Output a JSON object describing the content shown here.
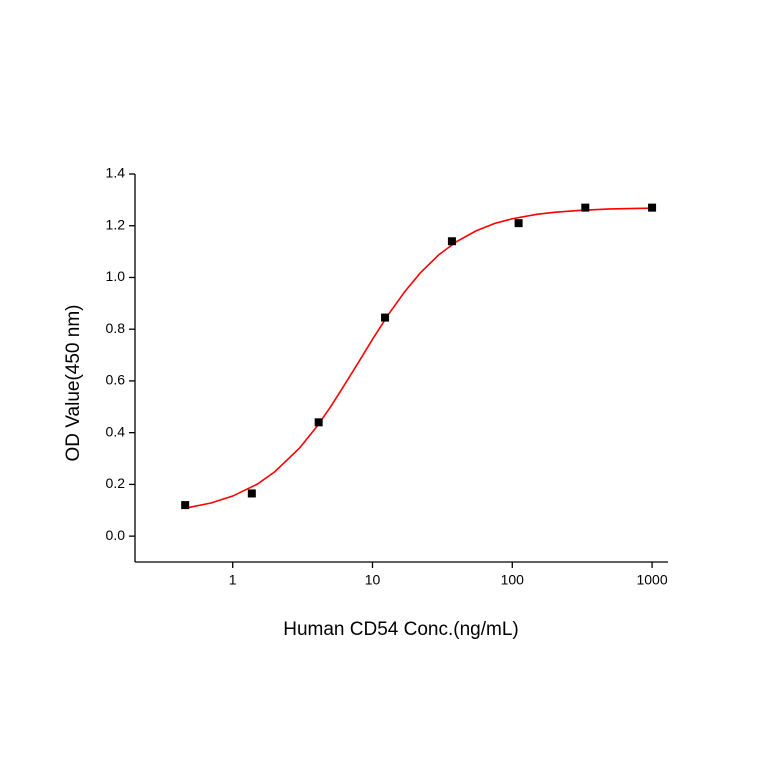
{
  "chart_data": {
    "type": "scatter",
    "x_label": "Human CD54 Conc.(ng/mL)",
    "y_label": "OD Value(450 nm)",
    "log_x": true,
    "xlim": [
      0.2,
      1300
    ],
    "xticks": [
      1,
      10,
      100,
      1000
    ],
    "ylim": [
      -0.1,
      1.4
    ],
    "yticks": [
      {
        "value": 0,
        "label": "0.0"
      },
      {
        "value": 0.2,
        "label": "0.2"
      },
      {
        "value": 0.4,
        "label": "0.4"
      },
      {
        "value": 0.6,
        "label": "0.6"
      },
      {
        "value": 0.8,
        "label": "0.8"
      },
      {
        "value": 1.0,
        "label": "1.0"
      },
      {
        "value": 1.2,
        "label": "1.2"
      },
      {
        "value": 1.4,
        "label": "1.4"
      }
    ],
    "series": [
      {
        "color": "#000000",
        "x": [
          0.457,
          1.37,
          4.12,
          12.3,
          37,
          111,
          333,
          1000
        ],
        "values": [
          0.12,
          0.165,
          0.44,
          0.845,
          1.14,
          1.21,
          1.27,
          1.27
        ]
      }
    ],
    "fit_curve": {
      "color": "#ff0000",
      "x": [
        0.457,
        0.7,
        1,
        1.5,
        2,
        3,
        4,
        5,
        6,
        8,
        10,
        13,
        17,
        22,
        30,
        40,
        55,
        75,
        100,
        150,
        200,
        300,
        500,
        1000
      ],
      "values": [
        0.108,
        0.128,
        0.155,
        0.201,
        0.249,
        0.34,
        0.424,
        0.499,
        0.566,
        0.675,
        0.761,
        0.857,
        0.945,
        1.018,
        1.089,
        1.139,
        1.18,
        1.209,
        1.227,
        1.244,
        1.252,
        1.259,
        1.265,
        1.268
      ]
    }
  }
}
